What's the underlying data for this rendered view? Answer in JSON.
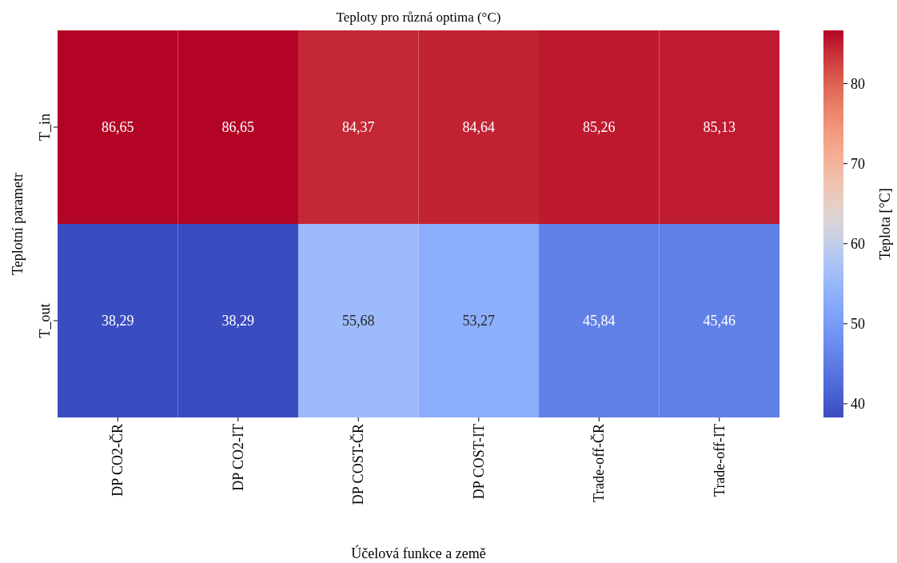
{
  "chart_data": {
    "type": "heatmap",
    "title": "Teploty pro různá optima (°C)",
    "xlabel": "Účelová funkce a země",
    "ylabel": "Teplotní parametr",
    "clabel": "Teplota [°C]",
    "categories": [
      "DP CO2-ČR",
      "DP CO2-IT",
      "DP COST-ČR",
      "DP COST-IT",
      "Trade-off-ČR",
      "Trade-off-IT"
    ],
    "y_categories": [
      "T_in",
      "T_out"
    ],
    "cells": [
      [
        86.65,
        86.65,
        84.37,
        84.64,
        85.26,
        85.13
      ],
      [
        38.29,
        38.29,
        55.68,
        53.27,
        45.84,
        45.46
      ]
    ],
    "cell_labels": [
      [
        "86,65",
        "86,65",
        "84,37",
        "84,64",
        "85,26",
        "85,13"
      ],
      [
        "38,29",
        "38,29",
        "55,68",
        "53,27",
        "45,84",
        "45,46"
      ]
    ],
    "clim": [
      38.29,
      86.65
    ],
    "cticks": [
      40,
      50,
      60,
      70,
      80
    ]
  }
}
